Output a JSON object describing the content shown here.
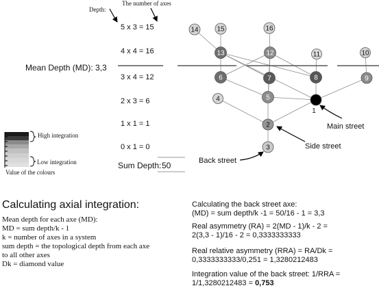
{
  "labels": {
    "depth": "Depth:",
    "num_axes": "The number of axes",
    "mean_depth": "Mean Depth (MD): 3,3",
    "sum_depth_label": "Sum Depth:",
    "sum_depth_value": "50",
    "main_street": "Main street",
    "side_street": "Side street",
    "back_street": "Back street"
  },
  "levels": [
    "5 x 3 = 15",
    "4 x 4 = 16",
    "3 x 4 = 12",
    "2 x 3 = 6",
    "1 x 1 = 1",
    "0 x 1 = 0"
  ],
  "legend": {
    "high": "High integration",
    "low": "Low integration",
    "caption": "Value of the colours"
  },
  "nodes": [
    {
      "id": "14",
      "fill": "#d4d4d4"
    },
    {
      "id": "15",
      "fill": "#d8d8d8"
    },
    {
      "id": "16",
      "fill": "#d8d8d8"
    },
    {
      "id": "13",
      "fill": "#6e6e6e"
    },
    {
      "id": "12",
      "fill": "#8a8a8a"
    },
    {
      "id": "11",
      "fill": "#dcdcdc"
    },
    {
      "id": "10",
      "fill": "#d2d2d2"
    },
    {
      "id": "6",
      "fill": "#6e6e6e"
    },
    {
      "id": "7",
      "fill": "#5a5a5a"
    },
    {
      "id": "8",
      "fill": "#565656"
    },
    {
      "id": "9",
      "fill": "#8c8c8c"
    },
    {
      "id": "4",
      "fill": "#d6d6d6"
    },
    {
      "id": "5",
      "fill": "#8e8e8e"
    },
    {
      "id": "1",
      "fill": "#000000"
    },
    {
      "id": "2",
      "fill": "#969696"
    },
    {
      "id": "3",
      "fill": "#cacaca"
    }
  ],
  "edges": [
    [
      "3",
      "2"
    ],
    [
      "2",
      "1"
    ],
    [
      "2",
      "5"
    ],
    [
      "2",
      "4"
    ],
    [
      "1",
      "5"
    ],
    [
      "1",
      "8"
    ],
    [
      "1",
      "9"
    ],
    [
      "1",
      "13"
    ],
    [
      "5",
      "6"
    ],
    [
      "5",
      "7"
    ],
    [
      "5",
      "12"
    ],
    [
      "6",
      "13"
    ],
    [
      "7",
      "13"
    ],
    [
      "7",
      "12"
    ],
    [
      "8",
      "13"
    ],
    [
      "8",
      "12"
    ],
    [
      "8",
      "11"
    ],
    [
      "6",
      "12"
    ],
    [
      "9",
      "10"
    ],
    [
      "13",
      "14"
    ],
    [
      "13",
      "15"
    ],
    [
      "12",
      "16"
    ]
  ],
  "left_text": {
    "heading": "Calculating axial integration:",
    "lines": [
      "Mean depth for each axe (MD):",
      "MD = sum depth/k - 1",
      "k = number of axes in a system",
      "sum depth = the topological depth from each axe",
      "to all other axes",
      "Dk = diamond value"
    ]
  },
  "right_text": {
    "calc_line1": "Calculating the back street axe:",
    "calc_line2": "(MD) = sum depth/k -1 = 50/16 - 1 = 3,3",
    "ra_line1": "Real asymmetry (RA) = 2(MD - 1)/k - 2 =",
    "ra_line2": "2(3,3 - 1)/16 - 2 = 0,3333333333",
    "rra_line1": "Real relative asymmetry (RRA) = RA/Dk =",
    "rra_line2": "0,3333333333/0,251 = 1,3280212483",
    "iv_line1": "Integration value of the back street: 1/RRA =",
    "iv_line2_prefix": "1/1,3280212483 = ",
    "iv_line2_value": "0,753"
  }
}
